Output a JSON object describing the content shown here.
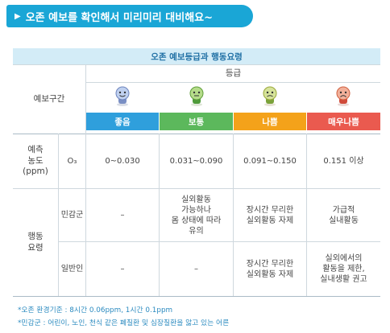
{
  "banner": {
    "arrow": "▶",
    "text": "오존 예보를 확인해서 미리미리 대비해요~"
  },
  "table": {
    "title": "오존 예보등급과 행동요령",
    "section_label": "예보구간",
    "grade_header": "등급",
    "grades": [
      {
        "label": "좋음",
        "color": "#2f9fdc"
      },
      {
        "label": "보통",
        "color": "#5cb85c"
      },
      {
        "label": "나쁨",
        "color": "#f4a21a"
      },
      {
        "label": "매우나쁨",
        "color": "#ea5a4f"
      }
    ],
    "concentration": {
      "label_lines": [
        "예측",
        "농도",
        "(ppm)"
      ],
      "substance": "O₃",
      "values": [
        "0~0.030",
        "0.031~0.090",
        "0.091~0.150",
        "0.151 이상"
      ]
    },
    "action": {
      "label_lines": [
        "행동",
        "요령"
      ],
      "sensitive": {
        "label": "민감군",
        "values": [
          [
            "–"
          ],
          [
            "실외활동",
            "가능하나",
            "몸 상태에 따라",
            "유의"
          ],
          [
            "장시간 무리한",
            "실외활동 자제"
          ],
          [
            "가급적",
            "실내활동"
          ]
        ]
      },
      "general": {
        "label": "일반인",
        "values": [
          [
            "–"
          ],
          [
            "–"
          ],
          [
            "장시간 무리한",
            "실외활동 자제"
          ],
          [
            "실외에서의",
            "활동을 제한,",
            "실내생활 권고"
          ]
        ]
      }
    }
  },
  "footnotes": [
    "*오존 환경기준 : 8시간 0.06ppm, 1시간 0.1ppm",
    "*민감군 : 어린이, 노인, 천식 같은 폐질환 및 심장질환을 앓고 있는 어른"
  ],
  "icons": [
    "face-good-icon",
    "face-normal-icon",
    "face-bad-icon",
    "face-very-bad-icon"
  ]
}
